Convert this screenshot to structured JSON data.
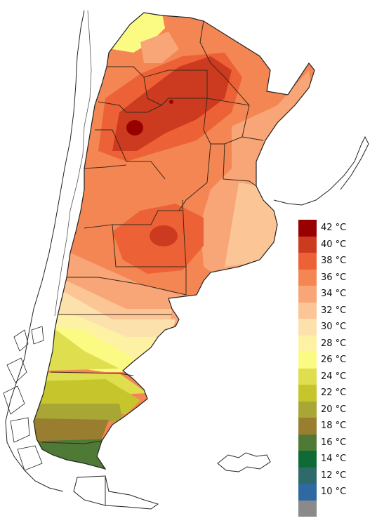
{
  "map": {
    "scale_colors": {
      "c42": "#990000",
      "c40": "#cc3a1f",
      "c38": "#ec6236",
      "c36": "#f48654",
      "c34": "#f8a577",
      "c32": "#fbc596",
      "c30": "#fde1ad",
      "c28": "#fdf2a4",
      "c26": "#fbfb84",
      "c24": "#dede4f",
      "c22": "#c6c62c",
      "c20": "#a8a635",
      "c18": "#9a7e2f",
      "c16": "#4f7a35",
      "c14": "#0e6b35",
      "c12": "#2f6a6a",
      "c10": "#2e6aa1",
      "cNone": "#8a8a8a"
    }
  },
  "legend": {
    "items": [
      {
        "label": "42 °C",
        "color": "#990000"
      },
      {
        "label": "40 °C",
        "color": "#cc3a1f"
      },
      {
        "label": "38 °C",
        "color": "#ec6236"
      },
      {
        "label": "36 °C",
        "color": "#f48654"
      },
      {
        "label": "34 °C",
        "color": "#f8a577"
      },
      {
        "label": "32 °C",
        "color": "#fbc596"
      },
      {
        "label": "30 °C",
        "color": "#fde1ad"
      },
      {
        "label": "28 °C",
        "color": "#fdf2a4"
      },
      {
        "label": "26 °C",
        "color": "#fbfb84"
      },
      {
        "label": "24 °C",
        "color": "#dede4f"
      },
      {
        "label": "22 °C",
        "color": "#c6c62c"
      },
      {
        "label": "20 °C",
        "color": "#a8a635"
      },
      {
        "label": "18 °C",
        "color": "#9a7e2f"
      },
      {
        "label": "16 °C",
        "color": "#4f7a35"
      },
      {
        "label": "14 °C",
        "color": "#0e6b35"
      },
      {
        "label": "12 °C",
        "color": "#2f6a6a"
      },
      {
        "label": "10 °C",
        "color": "#2e6aa1"
      },
      {
        "label": "",
        "color": "#8a8a8a"
      }
    ]
  }
}
